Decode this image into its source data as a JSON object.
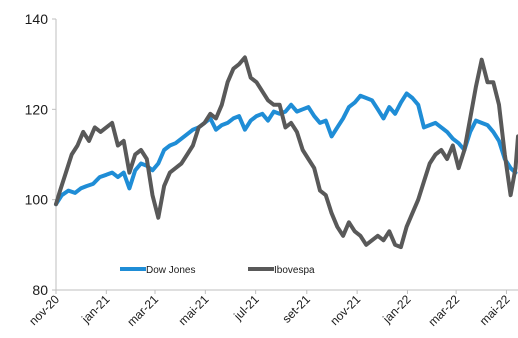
{
  "chart_data": {
    "type": "line",
    "title": "",
    "xlabel": "",
    "ylabel": "",
    "ylim": [
      80,
      140
    ],
    "yticks": [
      "140",
      "120",
      "100",
      "80"
    ],
    "ytick_values": [
      140,
      120,
      100,
      80
    ],
    "xlim": [
      "2020-11-01",
      "2022-05-15"
    ],
    "xticks": [
      {
        "label": "nov-20",
        "date": "2020-11-01"
      },
      {
        "label": "jan-21",
        "date": "2021-01-01"
      },
      {
        "label": "mar-21",
        "date": "2021-03-01"
      },
      {
        "label": "mai-21",
        "date": "2021-05-01"
      },
      {
        "label": "jul-21",
        "date": "2021-07-01"
      },
      {
        "label": "set-21",
        "date": "2021-09-01"
      },
      {
        "label": "nov-21",
        "date": "2021-11-01"
      },
      {
        "label": "jan-22",
        "date": "2022-01-01"
      },
      {
        "label": "mar-22",
        "date": "2022-03-01"
      },
      {
        "label": "mai-22",
        "date": "2022-05-01"
      }
    ],
    "grid": false,
    "legend_placement": "bottom-left",
    "series": [
      {
        "name": "Dow Jones",
        "color": "#1f8dd6",
        "points": [
          [
            "2020-11-01",
            99
          ],
          [
            "2020-11-08",
            101
          ],
          [
            "2020-11-16",
            102
          ],
          [
            "2020-11-24",
            101.5
          ],
          [
            "2020-12-01",
            102.5
          ],
          [
            "2020-12-08",
            103
          ],
          [
            "2020-12-16",
            103.5
          ],
          [
            "2020-12-24",
            105
          ],
          [
            "2021-01-01",
            105.5
          ],
          [
            "2021-01-08",
            106
          ],
          [
            "2021-01-15",
            105
          ],
          [
            "2021-01-22",
            106
          ],
          [
            "2021-01-29",
            102.5
          ],
          [
            "2021-02-05",
            106.5
          ],
          [
            "2021-02-12",
            108
          ],
          [
            "2021-02-19",
            107.5
          ],
          [
            "2021-02-26",
            106.5
          ],
          [
            "2021-03-05",
            108
          ],
          [
            "2021-03-12",
            111
          ],
          [
            "2021-03-19",
            112
          ],
          [
            "2021-03-26",
            112.5
          ],
          [
            "2021-04-02",
            113.5
          ],
          [
            "2021-04-09",
            114.5
          ],
          [
            "2021-04-16",
            115.5
          ],
          [
            "2021-04-23",
            116
          ],
          [
            "2021-04-30",
            117
          ],
          [
            "2021-05-07",
            118
          ],
          [
            "2021-05-14",
            115.5
          ],
          [
            "2021-05-21",
            116.5
          ],
          [
            "2021-05-28",
            117
          ],
          [
            "2021-06-04",
            118
          ],
          [
            "2021-06-11",
            118.5
          ],
          [
            "2021-06-18",
            115.5
          ],
          [
            "2021-06-25",
            117.5
          ],
          [
            "2021-07-02",
            118.5
          ],
          [
            "2021-07-09",
            119
          ],
          [
            "2021-07-16",
            117.5
          ],
          [
            "2021-07-23",
            119.5
          ],
          [
            "2021-07-30",
            119
          ],
          [
            "2021-08-06",
            119.5
          ],
          [
            "2021-08-13",
            121
          ],
          [
            "2021-08-20",
            119.5
          ],
          [
            "2021-08-27",
            120
          ],
          [
            "2021-09-03",
            120.5
          ],
          [
            "2021-09-10",
            118.5
          ],
          [
            "2021-09-17",
            117
          ],
          [
            "2021-09-24",
            117.5
          ],
          [
            "2021-10-01",
            114
          ],
          [
            "2021-10-08",
            116
          ],
          [
            "2021-10-15",
            118
          ],
          [
            "2021-10-22",
            120.5
          ],
          [
            "2021-10-29",
            121.5
          ],
          [
            "2021-11-05",
            123
          ],
          [
            "2021-11-12",
            122.5
          ],
          [
            "2021-11-19",
            122
          ],
          [
            "2021-11-26",
            120
          ],
          [
            "2021-12-03",
            118
          ],
          [
            "2021-12-10",
            120.5
          ],
          [
            "2021-12-17",
            119
          ],
          [
            "2021-12-24",
            121.5
          ],
          [
            "2021-12-31",
            123.5
          ],
          [
            "2022-01-07",
            122.5
          ],
          [
            "2022-01-14",
            121
          ],
          [
            "2022-01-21",
            116
          ],
          [
            "2022-01-28",
            116.5
          ],
          [
            "2022-02-04",
            117
          ],
          [
            "2022-02-11",
            116
          ],
          [
            "2022-02-18",
            115
          ],
          [
            "2022-02-25",
            113.5
          ],
          [
            "2022-03-04",
            112.5
          ],
          [
            "2022-03-11",
            111
          ],
          [
            "2022-03-18",
            115
          ],
          [
            "2022-03-25",
            117.5
          ],
          [
            "2022-04-01",
            117
          ],
          [
            "2022-04-08",
            116.5
          ],
          [
            "2022-04-15",
            115
          ],
          [
            "2022-04-22",
            113
          ],
          [
            "2022-04-29",
            109
          ],
          [
            "2022-05-06",
            107
          ],
          [
            "2022-05-12",
            106
          ]
        ]
      },
      {
        "name": "Ibovespa",
        "color": "#595959",
        "points": [
          [
            "2020-11-01",
            99
          ],
          [
            "2020-11-06",
            102
          ],
          [
            "2020-11-13",
            106
          ],
          [
            "2020-11-20",
            110
          ],
          [
            "2020-11-27",
            112
          ],
          [
            "2020-12-04",
            115
          ],
          [
            "2020-12-11",
            113
          ],
          [
            "2020-12-18",
            116
          ],
          [
            "2020-12-25",
            115
          ],
          [
            "2021-01-01",
            116
          ],
          [
            "2021-01-08",
            117
          ],
          [
            "2021-01-15",
            112
          ],
          [
            "2021-01-22",
            113
          ],
          [
            "2021-01-29",
            106
          ],
          [
            "2021-02-05",
            110
          ],
          [
            "2021-02-12",
            111
          ],
          [
            "2021-02-19",
            109
          ],
          [
            "2021-02-26",
            101
          ],
          [
            "2021-03-05",
            96
          ],
          [
            "2021-03-12",
            103
          ],
          [
            "2021-03-19",
            106
          ],
          [
            "2021-03-26",
            107
          ],
          [
            "2021-04-02",
            108
          ],
          [
            "2021-04-09",
            110
          ],
          [
            "2021-04-16",
            112
          ],
          [
            "2021-04-23",
            116
          ],
          [
            "2021-04-30",
            117
          ],
          [
            "2021-05-07",
            119
          ],
          [
            "2021-05-14",
            118
          ],
          [
            "2021-05-21",
            121
          ],
          [
            "2021-05-28",
            126
          ],
          [
            "2021-06-04",
            129
          ],
          [
            "2021-06-11",
            130
          ],
          [
            "2021-06-18",
            131.5
          ],
          [
            "2021-06-25",
            127
          ],
          [
            "2021-07-02",
            126
          ],
          [
            "2021-07-09",
            124
          ],
          [
            "2021-07-16",
            122
          ],
          [
            "2021-07-23",
            121
          ],
          [
            "2021-07-30",
            121
          ],
          [
            "2021-08-06",
            116
          ],
          [
            "2021-08-13",
            117
          ],
          [
            "2021-08-20",
            115
          ],
          [
            "2021-08-27",
            111
          ],
          [
            "2021-09-03",
            109
          ],
          [
            "2021-09-10",
            107
          ],
          [
            "2021-09-17",
            102
          ],
          [
            "2021-09-24",
            101
          ],
          [
            "2021-10-01",
            97
          ],
          [
            "2021-10-08",
            94
          ],
          [
            "2021-10-15",
            92
          ],
          [
            "2021-10-22",
            95
          ],
          [
            "2021-10-29",
            93
          ],
          [
            "2021-11-05",
            92
          ],
          [
            "2021-11-12",
            90
          ],
          [
            "2021-11-19",
            91
          ],
          [
            "2021-11-26",
            92
          ],
          [
            "2021-12-03",
            91
          ],
          [
            "2021-12-10",
            93
          ],
          [
            "2021-12-17",
            90
          ],
          [
            "2021-12-24",
            89.5
          ],
          [
            "2021-12-31",
            94
          ],
          [
            "2022-01-07",
            97
          ],
          [
            "2022-01-14",
            100
          ],
          [
            "2022-01-21",
            104
          ],
          [
            "2022-01-28",
            108
          ],
          [
            "2022-02-04",
            110
          ],
          [
            "2022-02-11",
            111
          ],
          [
            "2022-02-18",
            109
          ],
          [
            "2022-02-25",
            112
          ],
          [
            "2022-03-04",
            107
          ],
          [
            "2022-03-11",
            111
          ],
          [
            "2022-03-18",
            118
          ],
          [
            "2022-03-25",
            125
          ],
          [
            "2022-04-01",
            131
          ],
          [
            "2022-04-08",
            126
          ],
          [
            "2022-04-15",
            126
          ],
          [
            "2022-04-22",
            121
          ],
          [
            "2022-04-29",
            110
          ],
          [
            "2022-05-06",
            101
          ],
          [
            "2022-05-12",
            107
          ],
          [
            "2022-05-15",
            114
          ]
        ]
      }
    ]
  }
}
